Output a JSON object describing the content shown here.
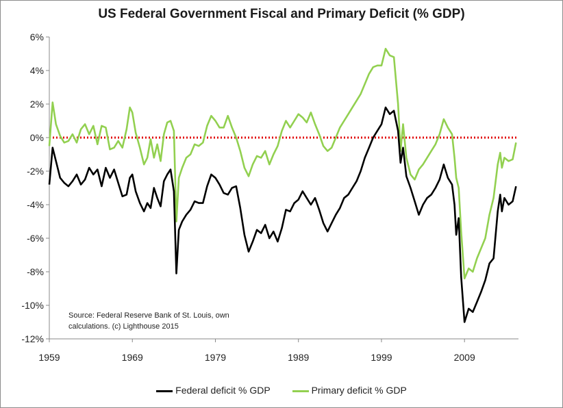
{
  "chart_data": {
    "type": "line",
    "title": "US Federal Government Fiscal and Primary Deficit (% GDP)",
    "source_note": "Source: Federal Reserve Bank of St. Louis, own calculations. (c) Lighthouse 2015",
    "xlabel": "",
    "ylabel": "",
    "xlim": [
      1959,
      2015.5
    ],
    "ylim": [
      -12,
      6
    ],
    "x_ticks": [
      1959,
      1969,
      1979,
      1989,
      1999,
      2009
    ],
    "x_tick_labels": [
      "1959",
      "1969",
      "1979",
      "1989",
      "1999",
      "2009"
    ],
    "y_ticks": [
      6,
      4,
      2,
      0,
      -2,
      -4,
      -6,
      -8,
      -10,
      -12
    ],
    "y_tick_labels": [
      "6%",
      "4%",
      "2%",
      "0%",
      "-2%",
      "-4%",
      "-6%",
      "-8%",
      "-10%",
      "-12%"
    ],
    "grid": false,
    "legend_position": "bottom",
    "reference_line": {
      "y": 0,
      "color": "#e00000",
      "style": "dotted"
    },
    "series": [
      {
        "name": "Federal deficit % GDP",
        "color": "#000000",
        "points": [
          [
            1959.0,
            -2.8
          ],
          [
            1959.4,
            -0.6
          ],
          [
            1959.8,
            -1.4
          ],
          [
            1960.3,
            -2.4
          ],
          [
            1960.8,
            -2.7
          ],
          [
            1961.3,
            -2.9
          ],
          [
            1961.8,
            -2.6
          ],
          [
            1962.3,
            -2.2
          ],
          [
            1962.8,
            -2.8
          ],
          [
            1963.3,
            -2.5
          ],
          [
            1963.8,
            -1.8
          ],
          [
            1964.3,
            -2.2
          ],
          [
            1964.8,
            -1.9
          ],
          [
            1965.3,
            -2.9
          ],
          [
            1965.8,
            -1.8
          ],
          [
            1966.3,
            -2.4
          ],
          [
            1966.8,
            -1.9
          ],
          [
            1967.3,
            -2.7
          ],
          [
            1967.8,
            -3.5
          ],
          [
            1968.3,
            -3.4
          ],
          [
            1968.7,
            -2.4
          ],
          [
            1969.0,
            -2.2
          ],
          [
            1969.4,
            -3.2
          ],
          [
            1969.9,
            -3.9
          ],
          [
            1970.4,
            -4.4
          ],
          [
            1970.8,
            -3.9
          ],
          [
            1971.2,
            -4.2
          ],
          [
            1971.6,
            -3.0
          ],
          [
            1972.0,
            -3.6
          ],
          [
            1972.4,
            -4.1
          ],
          [
            1972.8,
            -2.6
          ],
          [
            1973.2,
            -2.2
          ],
          [
            1973.6,
            -1.9
          ],
          [
            1974.0,
            -3.2
          ],
          [
            1974.3,
            -8.1
          ],
          [
            1974.6,
            -5.5
          ],
          [
            1975.0,
            -5.0
          ],
          [
            1975.5,
            -4.6
          ],
          [
            1976.0,
            -4.3
          ],
          [
            1976.5,
            -3.8
          ],
          [
            1977.0,
            -3.9
          ],
          [
            1977.5,
            -3.9
          ],
          [
            1978.0,
            -2.9
          ],
          [
            1978.5,
            -2.2
          ],
          [
            1979.0,
            -2.4
          ],
          [
            1979.5,
            -2.8
          ],
          [
            1980.0,
            -3.3
          ],
          [
            1980.5,
            -3.4
          ],
          [
            1981.0,
            -3.0
          ],
          [
            1981.5,
            -2.9
          ],
          [
            1982.0,
            -4.2
          ],
          [
            1982.5,
            -5.8
          ],
          [
            1983.0,
            -6.8
          ],
          [
            1983.5,
            -6.2
          ],
          [
            1984.0,
            -5.5
          ],
          [
            1984.5,
            -5.7
          ],
          [
            1985.0,
            -5.2
          ],
          [
            1985.5,
            -6.0
          ],
          [
            1986.0,
            -5.6
          ],
          [
            1986.5,
            -6.2
          ],
          [
            1987.0,
            -5.4
          ],
          [
            1987.5,
            -4.3
          ],
          [
            1988.0,
            -4.4
          ],
          [
            1988.5,
            -3.9
          ],
          [
            1989.0,
            -3.7
          ],
          [
            1989.5,
            -3.2
          ],
          [
            1990.0,
            -3.6
          ],
          [
            1990.5,
            -4.0
          ],
          [
            1991.0,
            -3.6
          ],
          [
            1991.5,
            -4.3
          ],
          [
            1992.0,
            -5.1
          ],
          [
            1992.5,
            -5.6
          ],
          [
            1993.0,
            -5.1
          ],
          [
            1993.5,
            -4.6
          ],
          [
            1994.0,
            -4.2
          ],
          [
            1994.5,
            -3.6
          ],
          [
            1995.0,
            -3.4
          ],
          [
            1995.5,
            -3.0
          ],
          [
            1996.0,
            -2.6
          ],
          [
            1996.5,
            -2.0
          ],
          [
            1997.0,
            -1.2
          ],
          [
            1997.5,
            -0.6
          ],
          [
            1998.0,
            0.0
          ],
          [
            1998.5,
            0.4
          ],
          [
            1999.0,
            0.8
          ],
          [
            1999.5,
            1.8
          ],
          [
            2000.0,
            1.4
          ],
          [
            2000.5,
            1.6
          ],
          [
            2001.0,
            0.4
          ],
          [
            2001.3,
            -1.5
          ],
          [
            2001.6,
            -0.6
          ],
          [
            2002.0,
            -2.3
          ],
          [
            2002.5,
            -3.0
          ],
          [
            2003.0,
            -3.8
          ],
          [
            2003.5,
            -4.6
          ],
          [
            2004.0,
            -4.0
          ],
          [
            2004.5,
            -3.6
          ],
          [
            2005.0,
            -3.4
          ],
          [
            2005.5,
            -3.0
          ],
          [
            2006.0,
            -2.5
          ],
          [
            2006.5,
            -1.6
          ],
          [
            2007.0,
            -2.4
          ],
          [
            2007.5,
            -2.8
          ],
          [
            2007.8,
            -4.0
          ],
          [
            2008.0,
            -5.8
          ],
          [
            2008.3,
            -4.8
          ],
          [
            2008.6,
            -8.3
          ],
          [
            2009.0,
            -11.0
          ],
          [
            2009.5,
            -10.2
          ],
          [
            2010.0,
            -10.4
          ],
          [
            2010.5,
            -9.8
          ],
          [
            2011.0,
            -9.2
          ],
          [
            2011.5,
            -8.5
          ],
          [
            2012.0,
            -7.5
          ],
          [
            2012.5,
            -7.2
          ],
          [
            2013.0,
            -4.4
          ],
          [
            2013.3,
            -3.4
          ],
          [
            2013.5,
            -4.4
          ],
          [
            2013.8,
            -3.6
          ],
          [
            2014.3,
            -4.0
          ],
          [
            2014.8,
            -3.8
          ],
          [
            2015.2,
            -2.9
          ]
        ]
      },
      {
        "name": "Primary deficit % GDP",
        "color": "#92d050",
        "points": [
          [
            1959.0,
            -0.5
          ],
          [
            1959.4,
            2.1
          ],
          [
            1959.8,
            0.8
          ],
          [
            1960.3,
            0.1
          ],
          [
            1960.8,
            -0.3
          ],
          [
            1961.3,
            -0.2
          ],
          [
            1961.8,
            0.2
          ],
          [
            1962.3,
            -0.3
          ],
          [
            1962.8,
            0.5
          ],
          [
            1963.3,
            0.8
          ],
          [
            1963.8,
            0.2
          ],
          [
            1964.3,
            0.7
          ],
          [
            1964.8,
            -0.4
          ],
          [
            1965.3,
            0.7
          ],
          [
            1965.8,
            0.6
          ],
          [
            1966.3,
            -0.7
          ],
          [
            1966.8,
            -0.6
          ],
          [
            1967.3,
            -0.2
          ],
          [
            1967.8,
            -0.6
          ],
          [
            1968.3,
            0.5
          ],
          [
            1968.7,
            1.8
          ],
          [
            1969.0,
            1.5
          ],
          [
            1969.4,
            0.3
          ],
          [
            1969.9,
            -0.6
          ],
          [
            1970.4,
            -1.6
          ],
          [
            1970.8,
            -1.2
          ],
          [
            1971.2,
            -0.1
          ],
          [
            1971.6,
            -1.2
          ],
          [
            1972.0,
            -0.4
          ],
          [
            1972.4,
            -1.4
          ],
          [
            1972.8,
            0.2
          ],
          [
            1973.2,
            0.9
          ],
          [
            1973.6,
            1.0
          ],
          [
            1974.0,
            0.4
          ],
          [
            1974.3,
            -5.0
          ],
          [
            1974.6,
            -2.4
          ],
          [
            1975.0,
            -1.8
          ],
          [
            1975.5,
            -1.2
          ],
          [
            1976.0,
            -1.0
          ],
          [
            1976.5,
            -0.4
          ],
          [
            1977.0,
            -0.5
          ],
          [
            1977.5,
            -0.3
          ],
          [
            1978.0,
            0.7
          ],
          [
            1978.5,
            1.3
          ],
          [
            1979.0,
            1.0
          ],
          [
            1979.5,
            0.6
          ],
          [
            1980.0,
            0.6
          ],
          [
            1980.5,
            1.3
          ],
          [
            1981.0,
            0.6
          ],
          [
            1981.5,
            0.0
          ],
          [
            1982.0,
            -0.8
          ],
          [
            1982.5,
            -1.8
          ],
          [
            1983.0,
            -2.3
          ],
          [
            1983.5,
            -1.6
          ],
          [
            1984.0,
            -1.1
          ],
          [
            1984.5,
            -1.2
          ],
          [
            1985.0,
            -0.8
          ],
          [
            1985.5,
            -1.6
          ],
          [
            1986.0,
            -1.0
          ],
          [
            1986.5,
            -0.5
          ],
          [
            1987.0,
            0.4
          ],
          [
            1987.5,
            1.0
          ],
          [
            1988.0,
            0.6
          ],
          [
            1988.5,
            1.0
          ],
          [
            1989.0,
            1.4
          ],
          [
            1989.5,
            1.2
          ],
          [
            1990.0,
            0.9
          ],
          [
            1990.5,
            1.5
          ],
          [
            1991.0,
            0.8
          ],
          [
            1991.5,
            0.2
          ],
          [
            1992.0,
            -0.5
          ],
          [
            1992.5,
            -0.8
          ],
          [
            1993.0,
            -0.6
          ],
          [
            1993.5,
            0.0
          ],
          [
            1994.0,
            0.6
          ],
          [
            1994.5,
            1.0
          ],
          [
            1995.0,
            1.4
          ],
          [
            1995.5,
            1.8
          ],
          [
            1996.0,
            2.2
          ],
          [
            1996.5,
            2.6
          ],
          [
            1997.0,
            3.2
          ],
          [
            1997.5,
            3.8
          ],
          [
            1998.0,
            4.2
          ],
          [
            1998.5,
            4.3
          ],
          [
            1999.0,
            4.3
          ],
          [
            1999.5,
            5.3
          ],
          [
            2000.0,
            4.9
          ],
          [
            2000.5,
            4.8
          ],
          [
            2001.0,
            2.0
          ],
          [
            2001.3,
            -0.8
          ],
          [
            2001.6,
            0.8
          ],
          [
            2002.0,
            -1.2
          ],
          [
            2002.5,
            -2.2
          ],
          [
            2003.0,
            -2.5
          ],
          [
            2003.5,
            -1.9
          ],
          [
            2004.0,
            -1.6
          ],
          [
            2004.5,
            -1.2
          ],
          [
            2005.0,
            -0.8
          ],
          [
            2005.5,
            -0.4
          ],
          [
            2006.0,
            0.2
          ],
          [
            2006.5,
            1.1
          ],
          [
            2007.0,
            0.6
          ],
          [
            2007.5,
            0.2
          ],
          [
            2007.8,
            -1.2
          ],
          [
            2008.0,
            -2.4
          ],
          [
            2008.3,
            -3.0
          ],
          [
            2008.6,
            -5.6
          ],
          [
            2009.0,
            -8.4
          ],
          [
            2009.5,
            -7.8
          ],
          [
            2010.0,
            -8.0
          ],
          [
            2010.5,
            -7.2
          ],
          [
            2011.0,
            -6.6
          ],
          [
            2011.5,
            -6.0
          ],
          [
            2012.0,
            -4.6
          ],
          [
            2012.5,
            -3.6
          ],
          [
            2013.0,
            -1.6
          ],
          [
            2013.3,
            -0.9
          ],
          [
            2013.5,
            -1.8
          ],
          [
            2013.8,
            -1.2
          ],
          [
            2014.3,
            -1.4
          ],
          [
            2014.8,
            -1.3
          ],
          [
            2015.2,
            -0.3
          ]
        ]
      }
    ]
  }
}
